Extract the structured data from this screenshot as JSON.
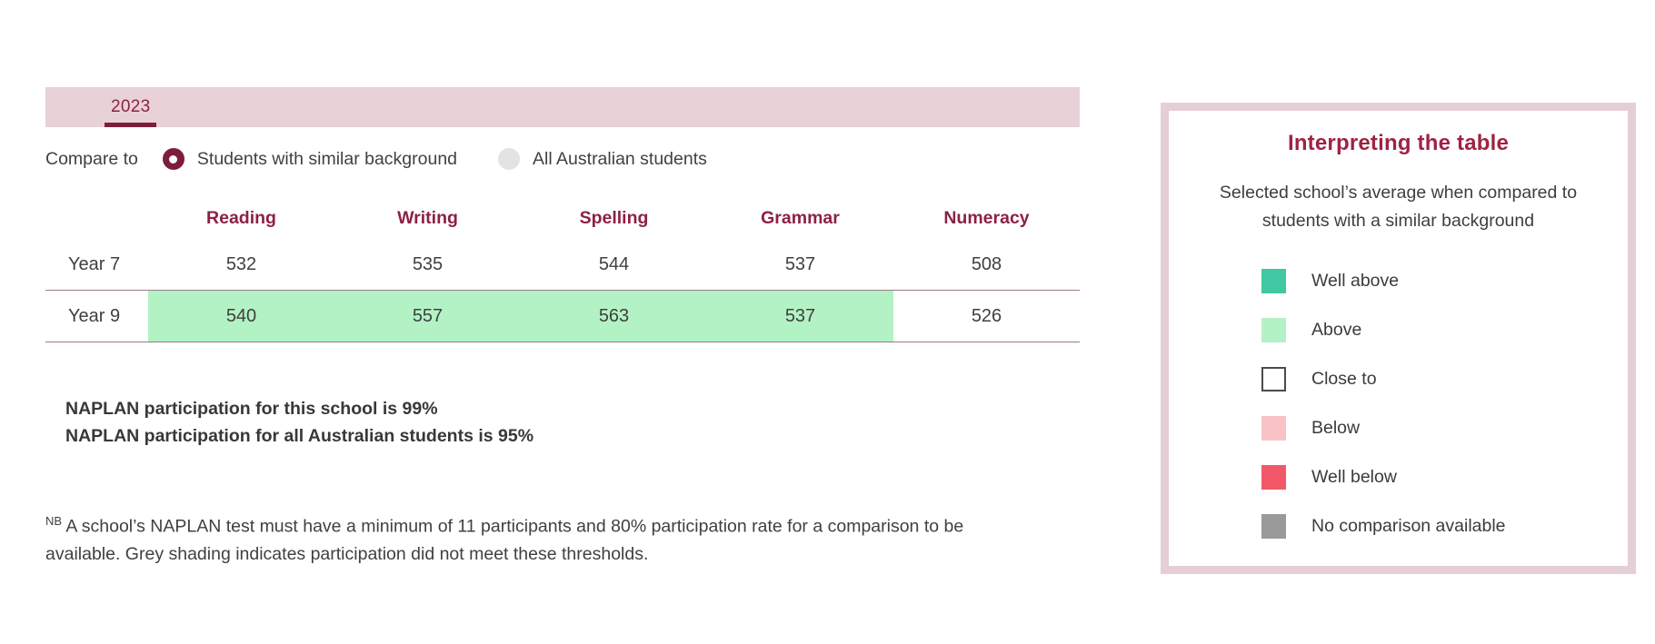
{
  "tabs": [
    {
      "label": "2023",
      "active": true
    }
  ],
  "compare": {
    "label": "Compare to",
    "options": [
      {
        "label": "Students with similar background",
        "selected": true
      },
      {
        "label": "All Australian students",
        "selected": false
      }
    ]
  },
  "table": {
    "columns": [
      "Reading",
      "Writing",
      "Spelling",
      "Grammar",
      "Numeracy"
    ],
    "rows": [
      {
        "label": "Year 7",
        "values": [
          "532",
          "535",
          "544",
          "537",
          "508"
        ],
        "highlight": [
          false,
          false,
          false,
          false,
          false
        ]
      },
      {
        "label": "Year 9",
        "values": [
          "540",
          "557",
          "563",
          "537",
          "526"
        ],
        "highlight": [
          true,
          true,
          true,
          true,
          false
        ]
      }
    ]
  },
  "participation": {
    "line1": "NAPLAN participation for this school is 99%",
    "line2": "NAPLAN participation for all Australian students is 95%"
  },
  "note": {
    "nb": "NB",
    "text": "A school’s NAPLAN test must have a minimum of 11 participants and 80% participation rate for a comparison to be available. Grey shading indicates participation did not meet these thresholds."
  },
  "legend": {
    "title": "Interpreting the table",
    "subtitle": "Selected school’s average when compared to students with a similar background",
    "items": [
      {
        "label": "Well above",
        "color": "#3fc8a2"
      },
      {
        "label": "Above",
        "color": "#b3f2c4"
      },
      {
        "label": "Close to",
        "color": "#ffffff"
      },
      {
        "label": "Below",
        "color": "#f9c3c6"
      },
      {
        "label": "Well below",
        "color": "#f15968"
      },
      {
        "label": "No comparison available",
        "color": "#9a9a9a"
      }
    ]
  },
  "colors": {
    "maroon": "#8c2144",
    "maroon_dark": "#7c1d3c",
    "tab_bar_bg": "#e8d2d7",
    "row_line": "#9b7a86",
    "text_dark": "#3d3d3d",
    "radio_selected": "#7c1d3c",
    "radio_unselected": "#e3e3e3",
    "panel_border": "#e6ced7",
    "title_maroon": "#9e2345",
    "above_highlight": "#b3f2c4",
    "close_to_border": "#4a4a4a"
  }
}
